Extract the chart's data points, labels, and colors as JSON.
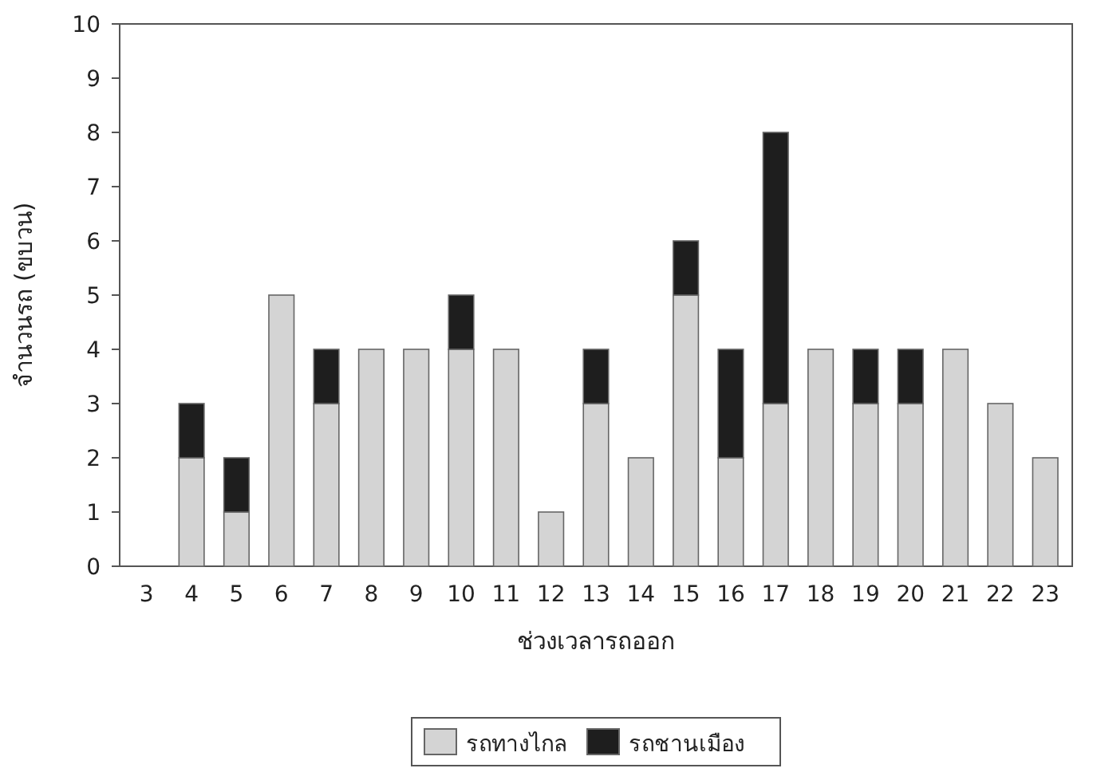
{
  "chart_data": {
    "type": "bar",
    "stacked": true,
    "xlabel": "ช่วงเวลารถออก",
    "ylabel": "จำนวนรถ (ขบวน)",
    "categories": [
      "3",
      "4",
      "5",
      "6",
      "7",
      "8",
      "9",
      "10",
      "11",
      "12",
      "13",
      "14",
      "15",
      "16",
      "17",
      "18",
      "19",
      "20",
      "21",
      "22",
      "23"
    ],
    "series": [
      {
        "name": "รถทางไกล",
        "color": "#d4d4d4",
        "values": [
          0,
          2,
          1,
          5,
          3,
          4,
          4,
          4,
          4,
          1,
          3,
          2,
          5,
          2,
          3,
          4,
          3,
          3,
          4,
          3,
          2
        ]
      },
      {
        "name": "รถชานเมือง",
        "color": "#1e1e1e",
        "values": [
          0,
          1,
          1,
          0,
          1,
          0,
          0,
          1,
          0,
          0,
          1,
          0,
          1,
          2,
          5,
          0,
          1,
          1,
          0,
          0,
          0
        ]
      }
    ],
    "ylim": [
      0,
      10
    ],
    "yticks": [
      0,
      1,
      2,
      3,
      4,
      5,
      6,
      7,
      8,
      9,
      10
    ],
    "grid": false,
    "legend": "bottom"
  }
}
